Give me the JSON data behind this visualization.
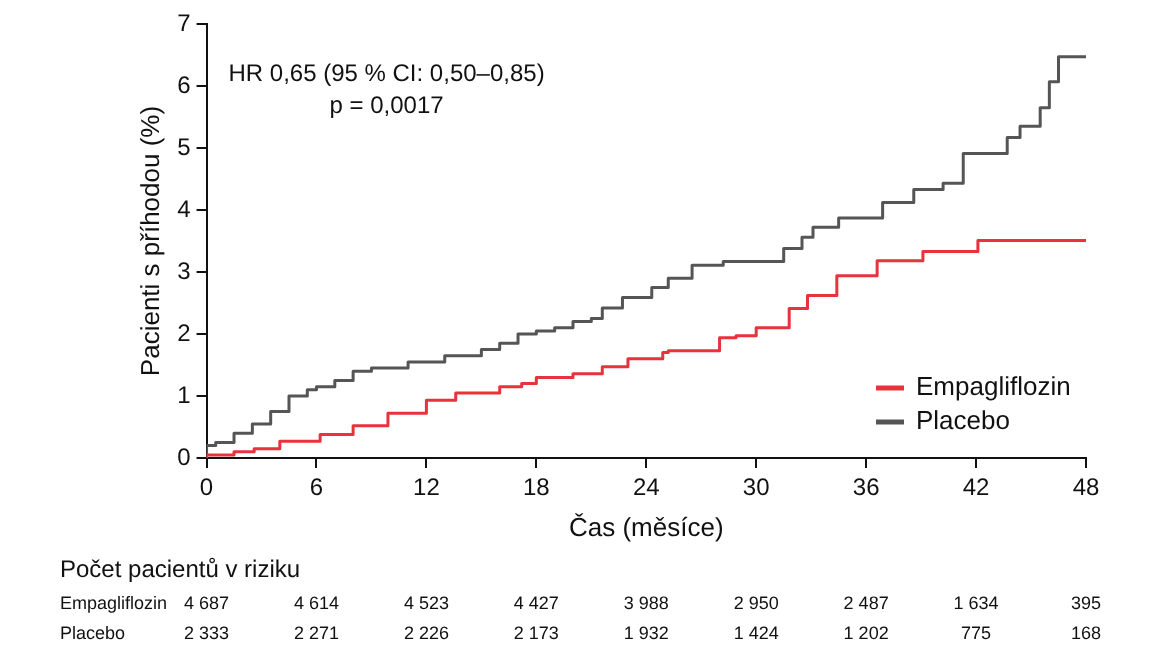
{
  "chart_data": {
    "type": "step",
    "xlabel": "Čas (měsíce)",
    "ylabel": "Pacienti s příhodou (%)",
    "xlim": [
      0,
      48
    ],
    "xticks": [
      0,
      6,
      12,
      18,
      24,
      30,
      36,
      42,
      48
    ],
    "ylim": [
      0,
      7
    ],
    "yticks": [
      0,
      1,
      2,
      3,
      4,
      5,
      6,
      7
    ],
    "grid": false,
    "legend": "bottom right",
    "line_style": "solid",
    "marker": "none",
    "series": [
      {
        "name": "Empagliflozin",
        "color": "#e8323c",
        "x": [
          0,
          1.5,
          2.6,
          4,
          6.2,
          8,
          9.9,
          12,
          13.6,
          16,
          17.2,
          18,
          20,
          21.6,
          23,
          24.9,
          25.2,
          28,
          28.9,
          30,
          31.8,
          32.8,
          34.4,
          36.6,
          39.1,
          42.1,
          45.7,
          48
        ],
        "values": [
          0,
          0.05,
          0.1,
          0.15,
          0.27,
          0.38,
          0.52,
          0.72,
          0.93,
          1.05,
          1.15,
          1.2,
          1.3,
          1.36,
          1.47,
          1.6,
          1.7,
          1.73,
          1.94,
          1.97,
          2.1,
          2.41,
          2.62,
          2.94,
          3.18,
          3.33,
          3.51,
          3.51
        ]
      },
      {
        "name": "Placebo",
        "color": "#555555",
        "x": [
          0,
          0.5,
          1.5,
          2.5,
          3.5,
          4.5,
          5.5,
          6,
          7,
          8,
          9,
          11,
          13,
          15,
          16,
          17,
          18,
          19,
          20,
          21,
          21.6,
          22.7,
          24.3,
          25.2,
          26.5,
          28.2,
          31.5,
          32.5,
          33.1,
          34.5,
          36.9,
          38.6,
          40.2,
          41.3,
          43.7,
          44.4,
          45.5,
          46,
          46.5,
          47,
          48
        ],
        "values": [
          0,
          0.2,
          0.25,
          0.4,
          0.55,
          0.75,
          1.0,
          1.1,
          1.15,
          1.25,
          1.4,
          1.45,
          1.55,
          1.65,
          1.75,
          1.85,
          2.0,
          2.05,
          2.1,
          2.2,
          2.25,
          2.42,
          2.59,
          2.75,
          2.9,
          3.11,
          3.17,
          3.38,
          3.56,
          3.72,
          3.87,
          4.12,
          4.33,
          4.43,
          4.91,
          5.17,
          5.35,
          5.65,
          6.07,
          6.47,
          6.47
        ]
      }
    ],
    "annotations": [
      "HR 0,65 (95 % CI: 0,50–0,85)",
      "p = 0,0017",
      "Počet pacientů v riziku",
      "Empagliflozin",
      "4 687",
      "4 614",
      "4 523",
      "4 427",
      "3 988",
      "2 950",
      "2 487",
      "1 634",
      "395",
      "Placebo",
      "2 333",
      "2 271",
      "2 226",
      "2 173",
      "1 932",
      "1 424",
      "1 202",
      "775",
      "168"
    ]
  }
}
